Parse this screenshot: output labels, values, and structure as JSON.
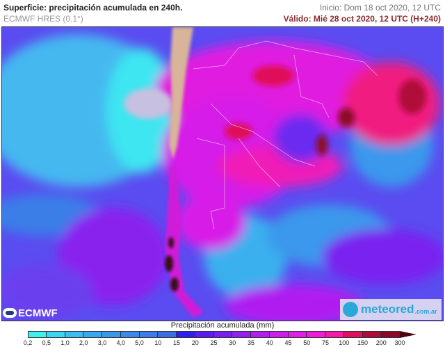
{
  "header": {
    "title": "Superficie: precipitación acumulada en 240h.",
    "model": "ECMWF HRES (0.1°)",
    "start": "Inicio: Dom 18 oct 2020, 12 UTC",
    "valid": "Válido: Mié 28 oct 2020, 12 UTC (H+240)"
  },
  "logos": {
    "ecmwf": "ECMWF",
    "meteored_name": "meteored",
    "meteored_domain": ".com.ar"
  },
  "legend": {
    "title": "Precipitación acumulada (mm)",
    "labels": [
      "0,2",
      "0,5",
      "1,0",
      "2,0",
      "3,0",
      "4,0",
      "5,0",
      "10",
      "15",
      "20",
      "25",
      "30",
      "35",
      "40",
      "45",
      "50",
      "75",
      "100",
      "150",
      "200",
      "300"
    ],
    "colors": [
      "#3ff0f0",
      "#3cd6f2",
      "#3bbef0",
      "#3aa8ee",
      "#3a98ec",
      "#3a8aea",
      "#3a7ce8",
      "#3b6ee4",
      "#2e1ff0",
      "#5a1cf0",
      "#7a1ef0",
      "#951ff0",
      "#b01ef0",
      "#cc1cf0",
      "#e01ce8",
      "#f01ad8",
      "#f818a8",
      "#e0105a",
      "#b00c3a",
      "#8c0a28"
    ],
    "arrow_color": "#4a0510"
  }
}
